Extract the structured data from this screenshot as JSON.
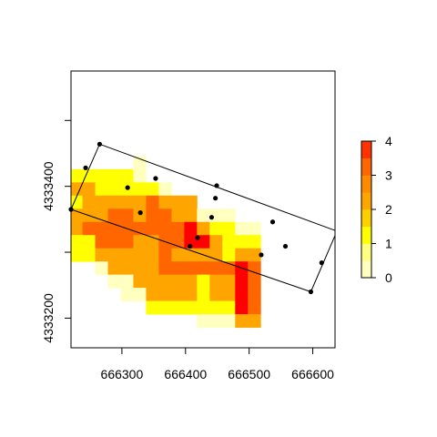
{
  "chart_data": {
    "type": "heatmap",
    "title": "",
    "xlabel": "",
    "ylabel": "",
    "xlim": [
      666220,
      666635
    ],
    "ylim": [
      4333155,
      4333575
    ],
    "x_ticks": [
      666300,
      666400,
      666500,
      666600
    ],
    "x_tick_labels": [
      "666300",
      "666400",
      "666500",
      "666600"
    ],
    "y_ticks": [
      4333200,
      4333400
    ],
    "y_tick_labels": [
      "4333200",
      "4333400"
    ],
    "y_minor_ticks": [
      4333300,
      4333500
    ],
    "grid": false,
    "cell_size": 20,
    "grid_origin": [
      666218,
      4333446
    ],
    "grid_values": [
      [
        null,
        null,
        null,
        null,
        null,
        0,
        null,
        null,
        null,
        null,
        null,
        null,
        null,
        null,
        null
      ],
      [
        1,
        1,
        1,
        1,
        1,
        0,
        null,
        null,
        null,
        null,
        null,
        null,
        null,
        null,
        null
      ],
      [
        2,
        2,
        1,
        1,
        1,
        1,
        1,
        0,
        null,
        null,
        null,
        null,
        null,
        null,
        null
      ],
      [
        1,
        2,
        2,
        2,
        2,
        2,
        3,
        2,
        2,
        2,
        null,
        null,
        null,
        null,
        null
      ],
      [
        2,
        2,
        2,
        3,
        3,
        2,
        3,
        3,
        2,
        2,
        0,
        0,
        0,
        null,
        null
      ],
      [
        2,
        3,
        3,
        3,
        3,
        3,
        3,
        3,
        3,
        4,
        2,
        1,
        1,
        0,
        0
      ],
      [
        1,
        1,
        3,
        3,
        3,
        2,
        2,
        3,
        3,
        4,
        4,
        2,
        1,
        1,
        1
      ],
      [
        1,
        1,
        2,
        2,
        2,
        2,
        2,
        3,
        2,
        2,
        2,
        2,
        1,
        2,
        2
      ],
      [
        null,
        null,
        0,
        2,
        2,
        2,
        2,
        3,
        3,
        3,
        3,
        3,
        3,
        4,
        3
      ],
      [
        null,
        null,
        null,
        0,
        0,
        2,
        2,
        2,
        2,
        2,
        1,
        2,
        2,
        4,
        3
      ],
      [
        null,
        null,
        null,
        null,
        0,
        0,
        2,
        2,
        2,
        2,
        1,
        2,
        2,
        4,
        3
      ],
      [
        null,
        null,
        null,
        null,
        null,
        null,
        1,
        1,
        1,
        1,
        1,
        1,
        1,
        4,
        3
      ],
      [
        null,
        null,
        null,
        null,
        null,
        null,
        null,
        null,
        null,
        null,
        0,
        0,
        0,
        2,
        2
      ]
    ],
    "color_scale": {
      "levels": [
        0,
        0.5,
        1,
        1.5,
        2,
        2.5,
        3,
        3.5,
        4
      ],
      "colors": [
        "#FFFFBF",
        "#FFFF80",
        "#FFFF00",
        "#FFD000",
        "#FFA500",
        "#FF8C00",
        "#FF6600",
        "#FF3300",
        "#FF0000"
      ],
      "legend_ticks": [
        0,
        1,
        2,
        3,
        4
      ],
      "legend_tick_labels": [
        "0",
        "1",
        "2",
        "3",
        "4"
      ],
      "legend_placement": "right"
    },
    "points": [
      {
        "x": 666265,
        "y": 4333464
      },
      {
        "x": 666243,
        "y": 4333428
      },
      {
        "x": 666220,
        "y": 4333365
      },
      {
        "x": 666309,
        "y": 4333398
      },
      {
        "x": 666353,
        "y": 4333412
      },
      {
        "x": 666449,
        "y": 4333401
      },
      {
        "x": 666447,
        "y": 4333382
      },
      {
        "x": 666329,
        "y": 4333360
      },
      {
        "x": 666441,
        "y": 4333353
      },
      {
        "x": 666537,
        "y": 4333346
      },
      {
        "x": 666419,
        "y": 4333322
      },
      {
        "x": 666407,
        "y": 4333309
      },
      {
        "x": 666557,
        "y": 4333309
      },
      {
        "x": 666519,
        "y": 4333296
      },
      {
        "x": 666614,
        "y": 4333284
      },
      {
        "x": 666597,
        "y": 4333240
      }
    ],
    "polygon": [
      {
        "x": 666265,
        "y": 4333464
      },
      {
        "x": 666638,
        "y": 4333332
      },
      {
        "x": 666597,
        "y": 4333240
      },
      {
        "x": 666220,
        "y": 4333365
      }
    ]
  }
}
